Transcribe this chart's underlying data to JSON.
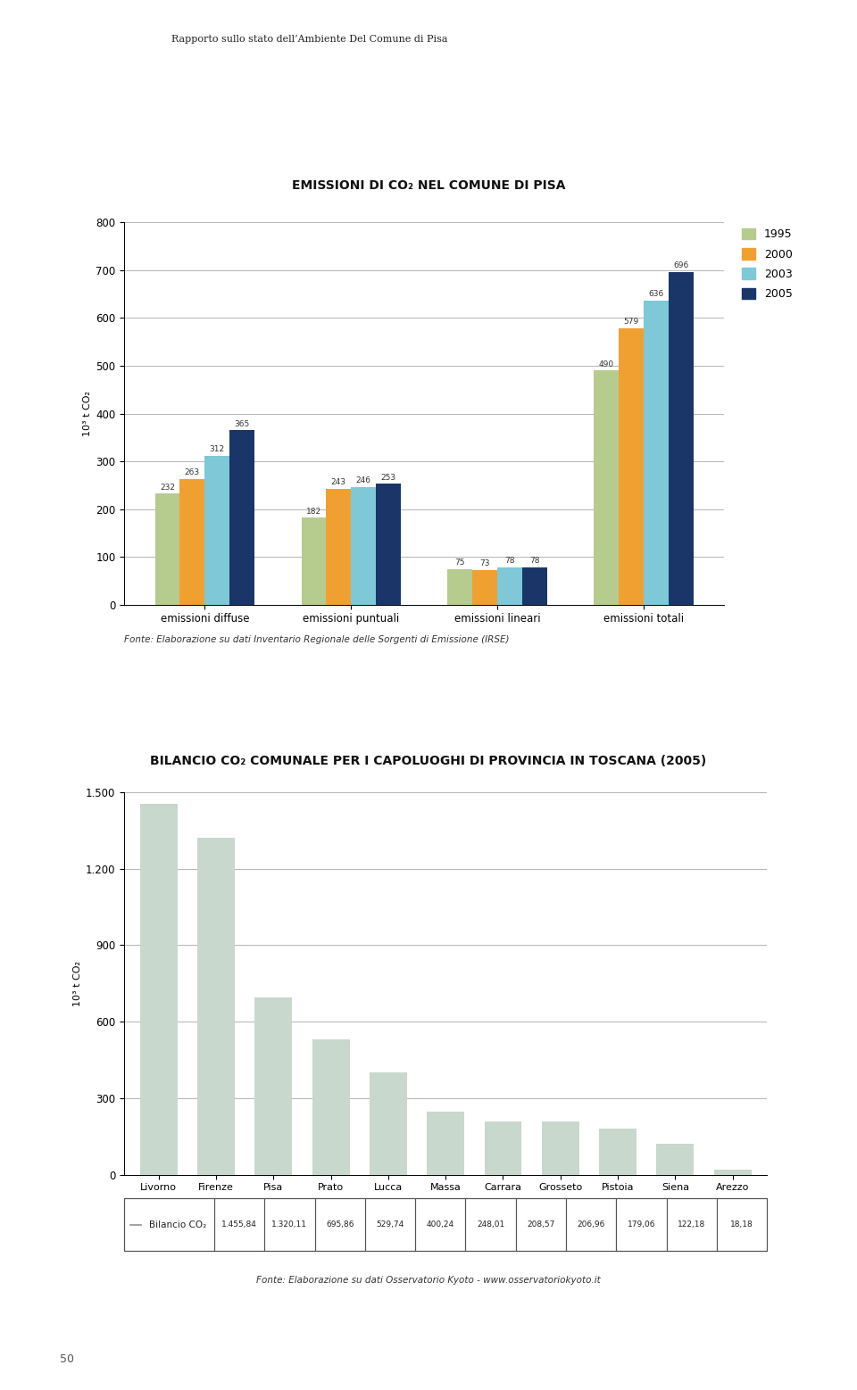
{
  "page_bg": "#ffffff",
  "header_bar_color": "#1aabb5",
  "header_text": "Rapporto sullo stato dell’Ambiente Del Comune di Pisa",
  "left_bar_color": "#1aabb5",
  "chart1_title": "EMISSIONI DI CO₂ NEL COMUNE DI PISA",
  "chart1_categories": [
    "emissioni diffuse",
    "emissioni puntuali",
    "emissioni lineari",
    "emissioni totali"
  ],
  "chart1_years": [
    "1995",
    "2000",
    "2003",
    "2005"
  ],
  "chart1_colors": [
    "#b5cc8e",
    "#f0a030",
    "#7ec8d8",
    "#1a3668"
  ],
  "chart1_values": {
    "1995": [
      232,
      182,
      75,
      490
    ],
    "2000": [
      263,
      243,
      73,
      579
    ],
    "2003": [
      312,
      246,
      78,
      636
    ],
    "2005": [
      365,
      253,
      78,
      696
    ]
  },
  "chart1_ylim": [
    0,
    800
  ],
  "chart1_yticks": [
    0,
    100,
    200,
    300,
    400,
    500,
    600,
    700,
    800
  ],
  "chart1_ylabel": "10³ t CO₂",
  "chart1_fonte": "Fonte: Elaborazione su dati Inventario Regionale delle Sorgenti di Emissione (IRSE)",
  "chart2_title": "BILANCIO CO₂ COMUNALE PER I CAPOLUOGHI DI PROVINCIA IN TOSCANA (2005)",
  "chart2_categories": [
    "Livorno",
    "Firenze",
    "Pisa",
    "Prato",
    "Lucca",
    "Massa",
    "Carrara",
    "Grosseto",
    "Pistoia",
    "Siena",
    "Arezzo"
  ],
  "chart2_values": [
    1455.84,
    1320.11,
    695.86,
    529.74,
    400.24,
    248.01,
    208.57,
    206.96,
    179.06,
    122.18,
    18.18
  ],
  "chart2_bar_color": "#c8d8cc",
  "chart2_ylim": [
    0,
    1500
  ],
  "chart2_yticks": [
    0,
    300,
    600,
    900,
    1200,
    1500
  ],
  "chart2_ylabel": "10³ t CO₂",
  "chart2_legend_label": "Bilancio CO₂",
  "chart2_table_values": [
    "1.455,84",
    "1.320,11",
    "695,86",
    "529,74",
    "400,24",
    "248,01",
    "208,57",
    "206,96",
    "179,06",
    "122,18",
    "18,18"
  ],
  "chart2_fonte": "Fonte: Elaborazione su dati Osservatorio Kyoto - www.osservatoriokyoto.it",
  "page_number": "50"
}
